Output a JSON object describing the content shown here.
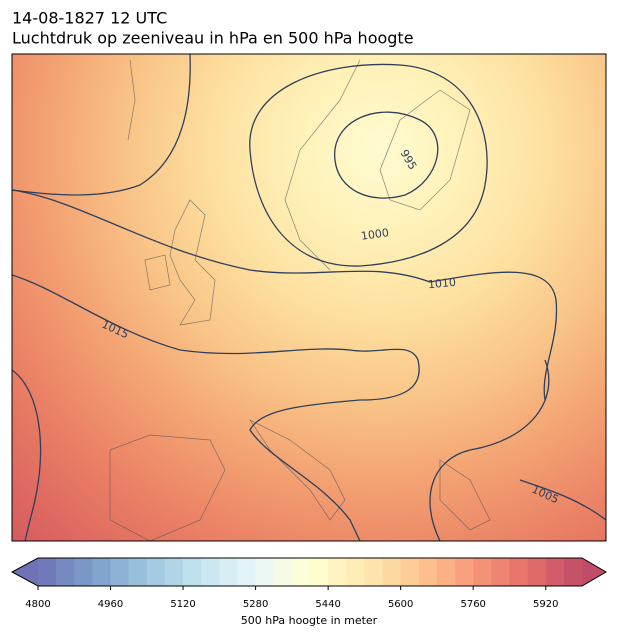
{
  "header": {
    "date": "14-08-1827 12 UTC",
    "title": "Luchtdruk op zeeniveau in hPa en 500 hPa hoogte"
  },
  "isobar_labels": [
    1000,
    1010,
    1015,
    995,
    1005
  ],
  "colorbar": {
    "label": "500 hPa hoogte in meter",
    "range": [
      4800,
      6000
    ],
    "levels": [
      4800,
      4840,
      4880,
      4920,
      4960,
      5000,
      5040,
      5080,
      5120,
      5160,
      5200,
      5240,
      5280,
      5320,
      5360,
      5400,
      5440,
      5480,
      5520,
      5560,
      5600,
      5640,
      5680,
      5720,
      5760,
      5800,
      5840,
      5880,
      5920,
      5960,
      6000
    ],
    "ticks": [
      4800,
      4960,
      5120,
      5280,
      5440,
      5600,
      5760,
      5920
    ]
  }
}
